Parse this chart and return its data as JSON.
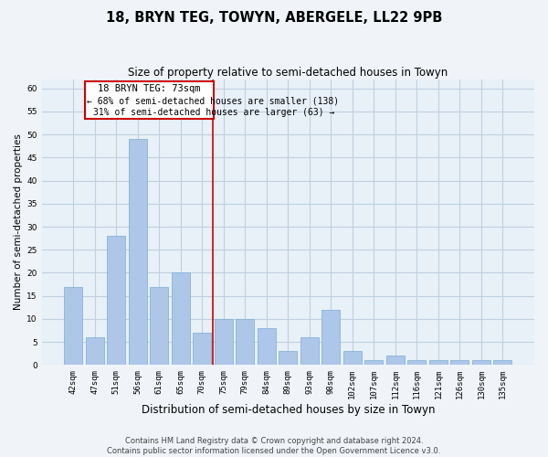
{
  "title": "18, BRYN TEG, TOWYN, ABERGELE, LL22 9PB",
  "subtitle": "Size of property relative to semi-detached houses in Towyn",
  "xlabel": "Distribution of semi-detached houses by size in Towyn",
  "ylabel": "Number of semi-detached properties",
  "categories": [
    "42sqm",
    "47sqm",
    "51sqm",
    "56sqm",
    "61sqm",
    "65sqm",
    "70sqm",
    "75sqm",
    "79sqm",
    "84sqm",
    "89sqm",
    "93sqm",
    "98sqm",
    "102sqm",
    "107sqm",
    "112sqm",
    "116sqm",
    "121sqm",
    "126sqm",
    "130sqm",
    "135sqm"
  ],
  "values": [
    17,
    6,
    28,
    49,
    17,
    20,
    7,
    10,
    10,
    8,
    3,
    6,
    12,
    3,
    1,
    2,
    1,
    1,
    1,
    1,
    1
  ],
  "bar_color": "#aec6e8",
  "bar_edge_color": "#7aadd4",
  "property_line_x": 6.5,
  "annotation_text_line1": "18 BRYN TEG: 73sqm",
  "annotation_text_line2": "← 68% of semi-detached houses are smaller (138)",
  "annotation_text_line3": "31% of semi-detached houses are larger (63) →",
  "ylim": [
    0,
    62
  ],
  "yticks": [
    0,
    5,
    10,
    15,
    20,
    25,
    30,
    35,
    40,
    45,
    50,
    55,
    60
  ],
  "footer_line1": "Contains HM Land Registry data © Crown copyright and database right 2024.",
  "footer_line2": "Contains public sector information licensed under the Open Government Licence v3.0.",
  "bg_color": "#f0f4f8",
  "plot_bg_color": "#e8f0f8",
  "grid_color": "#c0d0e0",
  "annotation_box_color": "#cc0000",
  "property_line_color": "#cc0000",
  "title_fontsize": 10.5,
  "subtitle_fontsize": 8.5,
  "axis_label_fontsize": 7.5,
  "tick_fontsize": 6.5,
  "annotation_fontsize": 7.5,
  "footer_fontsize": 6
}
